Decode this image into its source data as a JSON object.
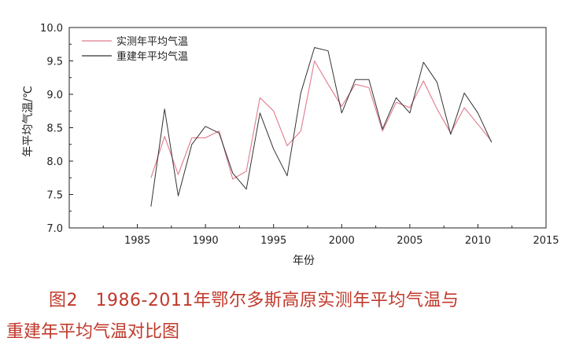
{
  "chart_data": {
    "type": "line",
    "xlabel": "年份",
    "ylabel": "年平均气温/℃",
    "xlim": [
      1980,
      2015
    ],
    "ylim": [
      7.0,
      10.0
    ],
    "xticks": [
      1985,
      1990,
      1995,
      2000,
      2005,
      2010,
      2015
    ],
    "yticks": [
      "7.0",
      "7.5",
      "8.0",
      "8.5",
      "9.0",
      "9.5",
      "10.0"
    ],
    "legend_position": "top-left",
    "x": [
      1986,
      1987,
      1988,
      1989,
      1990,
      1991,
      1992,
      1993,
      1994,
      1995,
      1996,
      1997,
      1998,
      1999,
      2000,
      2001,
      2002,
      2003,
      2004,
      2005,
      2006,
      2007,
      2008,
      2009,
      2010,
      2011
    ],
    "series": [
      {
        "name": "实测年平均气温",
        "color": "#e07a8c",
        "values": [
          7.75,
          8.37,
          7.8,
          8.35,
          8.35,
          8.45,
          7.73,
          7.85,
          8.95,
          8.75,
          8.23,
          8.45,
          9.5,
          9.15,
          8.82,
          9.15,
          9.1,
          8.45,
          8.88,
          8.8,
          9.2,
          8.78,
          8.42,
          8.8,
          8.55,
          8.3
        ]
      },
      {
        "name": "重建年平均气温",
        "color": "#333333",
        "values": [
          7.32,
          8.78,
          7.48,
          8.25,
          8.52,
          8.42,
          7.82,
          7.58,
          8.72,
          8.18,
          7.78,
          9.02,
          9.7,
          9.65,
          8.72,
          9.22,
          9.22,
          8.48,
          8.95,
          8.72,
          9.48,
          9.18,
          8.4,
          9.02,
          8.72,
          8.28
        ]
      }
    ]
  },
  "caption": {
    "line1": "图2　1986-2011年鄂尔多斯高原实测年平均气温与",
    "line2": "重建年平均气温对比图"
  }
}
